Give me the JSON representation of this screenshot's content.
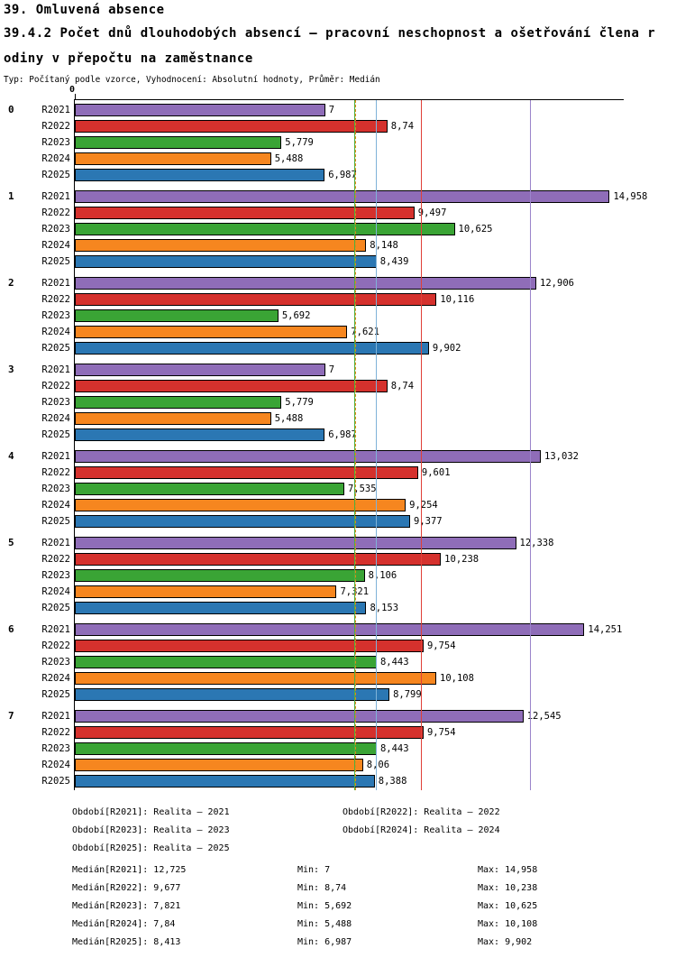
{
  "header": {
    "section_title": "39. Omluvená absence",
    "title_line1": "39.4.2 Počet dnů dlouhodobých absencí – pracovní neschopnost a ošetřování člena r",
    "title_line2": "odiny v přepočtu na zaměstnance",
    "subtitle": "Typ: Počítaný podle vzorce, Vyhodnocení: Absolutní hodnoty, Průměr: Medián"
  },
  "chart_data": {
    "type": "bar",
    "orientation": "horizontal",
    "title": "39.4.2 Počet dnů dlouhodobých absencí – pracovní neschopnost a ošetřování člena rodiny v přepočtu na zaměstnance",
    "x_axis": {
      "min_label": "0",
      "range": [
        0,
        15.35
      ],
      "position": "top"
    },
    "grid": false,
    "categories": [
      "0",
      "1",
      "2",
      "3",
      "4",
      "5",
      "6",
      "7"
    ],
    "series": [
      {
        "name": "R2021",
        "period": "Realita – 2021",
        "color": "#8f6db8",
        "median": 12.725,
        "min": 7,
        "max": 14.958,
        "median_line_color": "#9b84cb",
        "median_line_style": "solid",
        "values": [
          7,
          14.958,
          12.906,
          7,
          13.032,
          12.338,
          14.251,
          12.545
        ],
        "value_labels": [
          "7",
          "14,958",
          "12,906",
          "7",
          "13,032",
          "12,338",
          "14,251",
          "12,545"
        ]
      },
      {
        "name": "R2022",
        "period": "Realita – 2022",
        "color": "#d5312d",
        "median": 9.677,
        "min": 8.74,
        "max": 10.238,
        "median_line_color": "#e04038",
        "median_line_style": "solid",
        "values": [
          8.74,
          9.497,
          10.116,
          8.74,
          9.601,
          10.238,
          9.754,
          9.754
        ],
        "value_labels": [
          "8,74",
          "9,497",
          "10,116",
          "8,74",
          "9,601",
          "10,238",
          "9,754",
          "9,754"
        ]
      },
      {
        "name": "R2023",
        "period": "Realita – 2023",
        "color": "#3aa435",
        "median": 7.821,
        "min": 5.692,
        "max": 10.625,
        "median_line_color": "#4cb03f",
        "median_line_style": "solid",
        "values": [
          5.779,
          10.625,
          5.692,
          5.779,
          7.535,
          8.106,
          8.443,
          8.443
        ],
        "value_labels": [
          "5,779",
          "10,625",
          "5,692",
          "5,779",
          "7,535",
          "8,106",
          "8,443",
          "8,443"
        ]
      },
      {
        "name": "R2024",
        "period": "Realita – 2024",
        "color": "#f6861f",
        "median": 7.84,
        "min": 5.488,
        "max": 10.108,
        "median_line_color": "#e08a14",
        "median_line_style": "dashed",
        "values": [
          5.488,
          8.148,
          7.621,
          5.488,
          9.254,
          7.321,
          10.108,
          8.06
        ],
        "value_labels": [
          "5,488",
          "8,148",
          "7,621",
          "5,488",
          "9,254",
          "7,321",
          "10,108",
          "8,06"
        ]
      },
      {
        "name": "R2025",
        "period": "Realita – 2025",
        "color": "#2b77b3",
        "median": 8.413,
        "min": 6.987,
        "max": 9.902,
        "median_line_color": "#7fb2d8",
        "median_line_style": "solid",
        "values": [
          6.987,
          8.439,
          9.902,
          6.987,
          9.377,
          8.153,
          8.799,
          8.388
        ],
        "value_labels": [
          "6,987",
          "8,439",
          "9,902",
          "6,987",
          "9,377",
          "8,153",
          "8,799",
          "8,388"
        ]
      }
    ]
  },
  "legend": {
    "periods": [
      "Období[R2021]: Realita – 2021",
      "Období[R2022]: Realita – 2022",
      "Období[R2023]: Realita – 2023",
      "Období[R2024]: Realita – 2024",
      "Období[R2025]: Realita – 2025"
    ],
    "stats": [
      {
        "median": "Medián[R2021]: 12,725",
        "min": "Min: 7",
        "max": "Max: 14,958"
      },
      {
        "median": "Medián[R2022]: 9,677",
        "min": "Min: 8,74",
        "max": "Max: 10,238"
      },
      {
        "median": "Medián[R2023]: 7,821",
        "min": "Min: 5,692",
        "max": "Max: 10,625"
      },
      {
        "median": "Medián[R2024]: 7,84",
        "min": "Min: 5,488",
        "max": "Max: 10,108"
      },
      {
        "median": "Medián[R2025]: 8,413",
        "min": "Min: 6,987",
        "max": "Max: 9,902"
      }
    ]
  }
}
